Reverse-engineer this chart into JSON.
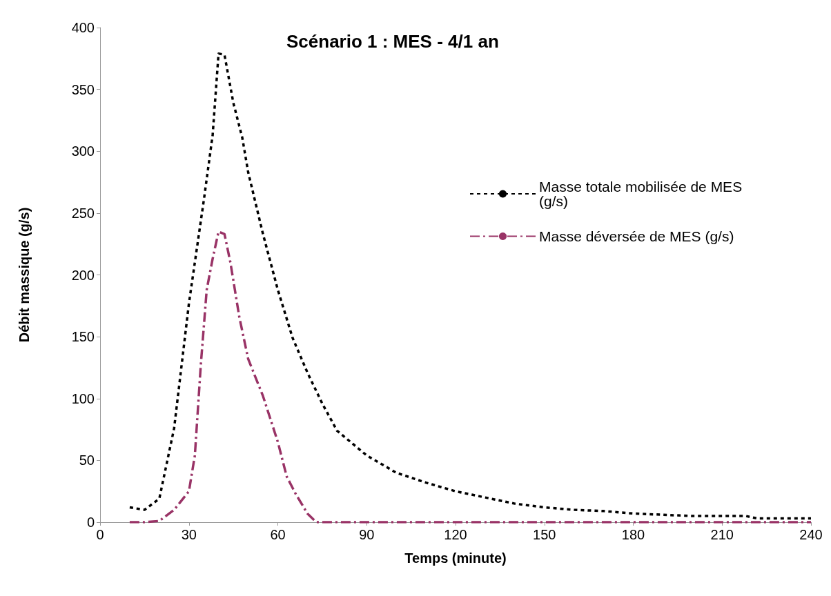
{
  "chart_data": {
    "type": "line",
    "title": "Scénario 1 : MES - 4/1 an",
    "xlabel": "Temps (minute)",
    "ylabel": "Débit massique (g/s)",
    "xlim": [
      0,
      240
    ],
    "xticks": [
      0,
      30,
      60,
      90,
      120,
      150,
      180,
      210,
      240
    ],
    "ylim": [
      0,
      400
    ],
    "yticks": [
      0,
      50,
      100,
      150,
      200,
      250,
      300,
      350,
      400
    ],
    "grid": false,
    "legend": "right",
    "marker": "none",
    "series": [
      {
        "name": "Masse totale mobilisée de MES (g/s)",
        "color": "#000000",
        "line_style": "dotted",
        "x": [
          10,
          15,
          20,
          25,
          30,
          35,
          38,
          40,
          42,
          45,
          48,
          50,
          55,
          60,
          65,
          70,
          75,
          80,
          90,
          100,
          110,
          120,
          130,
          140,
          150,
          160,
          170,
          180,
          190,
          200,
          210,
          218,
          222,
          240
        ],
        "values": [
          12,
          10,
          19,
          76,
          177,
          260,
          313,
          379,
          378,
          339,
          311,
          283,
          233,
          188,
          149,
          121,
          96,
          74,
          54,
          40,
          32,
          25,
          20,
          15,
          12,
          10,
          9,
          7,
          6,
          5,
          5,
          5,
          3,
          3
        ]
      },
      {
        "name": "Masse déversée de MES (g/s)",
        "color": "#993366",
        "line_style": "dashed",
        "x": [
          10,
          15,
          20,
          25,
          30,
          32,
          34,
          36,
          38,
          40,
          42,
          44,
          47,
          50,
          55,
          60,
          63,
          66,
          70,
          73,
          240
        ],
        "values": [
          0,
          0,
          1,
          10,
          25,
          54,
          127,
          188,
          213,
          235,
          233,
          210,
          166,
          132,
          102,
          65,
          37,
          23,
          7,
          0,
          0
        ]
      }
    ]
  }
}
